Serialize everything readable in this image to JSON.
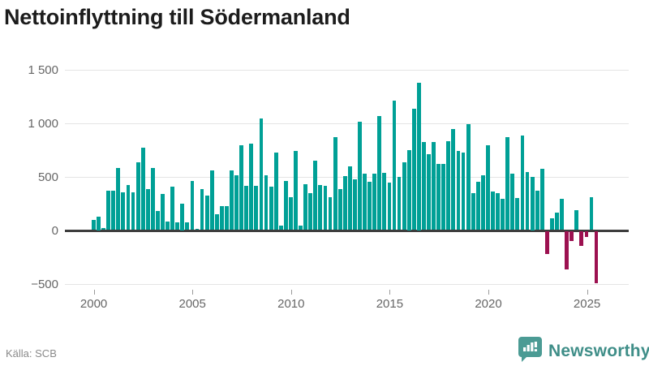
{
  "title": "Nettoinflyttning till Södermanland",
  "source": "Källa: SCB",
  "logo": {
    "text": "Newsworthy"
  },
  "colors": {
    "positive_bar": "#00a096",
    "negative_bar": "#9c1150",
    "title_text": "#1c1c1c",
    "axis_text": "#666666",
    "gridline": "#e4e4e4",
    "zero_line": "#3d3d3d",
    "source_text": "#8a8a8a",
    "logo_bubble": "#4b9b94",
    "logo_text": "#3f8e88"
  },
  "chart_data": {
    "type": "bar",
    "title": "Nettoinflyttning till Södermanland",
    "frequency": "quarterly",
    "start_period": "2000Q1",
    "end_period": "2025Q3",
    "xlabel": "",
    "ylabel": "",
    "ylim": [
      -500,
      1500
    ],
    "grid": true,
    "y_ticks": [
      1500,
      1000,
      500,
      0,
      -500
    ],
    "y_tick_labels": [
      "1 500",
      "1 000",
      "500",
      "0",
      "−500"
    ],
    "x_ticks": [
      2000,
      2005,
      2010,
      2015,
      2020,
      2025
    ],
    "x_tick_labels": [
      "2000",
      "2005",
      "2010",
      "2015",
      "2020",
      "2025"
    ],
    "values": [
      95,
      125,
      20,
      365,
      370,
      580,
      350,
      420,
      350,
      630,
      770,
      380,
      580,
      175,
      340,
      80,
      405,
      70,
      250,
      70,
      460,
      10,
      385,
      320,
      555,
      145,
      225,
      220,
      555,
      510,
      795,
      415,
      805,
      415,
      1045,
      515,
      405,
      725,
      40,
      460,
      305,
      740,
      45,
      430,
      345,
      645,
      420,
      410,
      310,
      870,
      380,
      505,
      595,
      470,
      1010,
      525,
      450,
      525,
      1065,
      535,
      445,
      1210,
      495,
      635,
      750,
      1130,
      1375,
      825,
      705,
      820,
      615,
      615,
      830,
      940,
      735,
      720,
      990,
      345,
      450,
      510,
      790,
      360,
      345,
      295,
      870,
      530,
      300,
      880,
      540,
      500,
      365,
      570,
      -212,
      109,
      160,
      293,
      -356,
      -94,
      185,
      -140,
      -56,
      310,
      -482
    ]
  }
}
